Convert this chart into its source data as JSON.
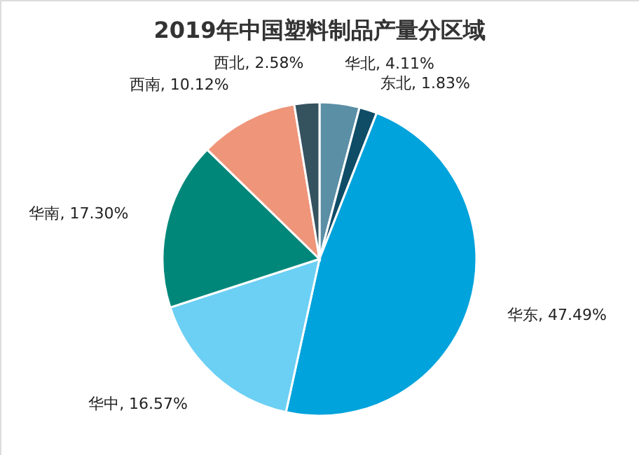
{
  "chart_data": {
    "type": "pie",
    "title": "2019年中国塑料制品产量分区域",
    "categories": [
      "华北",
      "东北",
      "华东",
      "华中",
      "华南",
      "西南",
      "西北"
    ],
    "values": [
      4.11,
      1.83,
      47.49,
      16.57,
      17.3,
      10.12,
      2.58
    ],
    "colors": [
      "#5b8fa6",
      "#0f4c66",
      "#00a3dc",
      "#6ccff4",
      "#00877a",
      "#ef957a",
      "#35525f"
    ],
    "value_labels": [
      "4.11%",
      "1.83%",
      "47.49%",
      "16.57%",
      "17.30%",
      "10.12%",
      "2.58%"
    ]
  }
}
